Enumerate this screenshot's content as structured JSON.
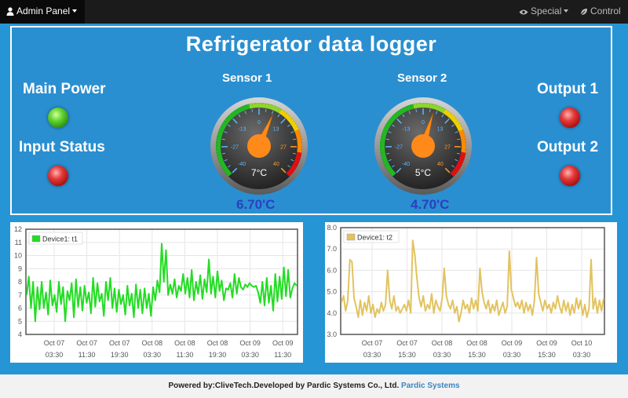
{
  "nav": {
    "brand_label": "Admin Panel",
    "special_label": "Special",
    "control_label": "Control"
  },
  "dashboard": {
    "title": "Refrigerator data logger",
    "main_power_label": "Main Power",
    "input_status_label": "Input Status",
    "output1_label": "Output 1",
    "output2_label": "Output 2",
    "main_power_state": "on",
    "input_status_state": "off",
    "output1_state": "off",
    "output2_state": "off",
    "led_colors": {
      "on": "#62d434",
      "off": "#e43a3a"
    }
  },
  "sensors": [
    {
      "title": "Sensor 1",
      "gauge_value": 7,
      "gauge_label": "7°C",
      "reading": "6.70'C",
      "ticks": [
        "-40",
        "-27",
        "-13",
        "0",
        "13",
        "27",
        "40"
      ]
    },
    {
      "title": "Sensor 2",
      "gauge_value": 5,
      "gauge_label": "5°C",
      "reading": "4.70'C",
      "ticks": [
        "-40",
        "-27",
        "-13",
        "0",
        "13",
        "27",
        "40"
      ]
    }
  ],
  "chart_data": [
    {
      "type": "line",
      "series": [
        {
          "name": "Device1: t1",
          "color": "#22dd22"
        }
      ],
      "ylim": [
        4,
        12
      ],
      "yticks": [
        "4",
        "5",
        "6",
        "7",
        "8",
        "9",
        "10",
        "11",
        "12"
      ],
      "xticks": [
        [
          "Oct 07",
          "03:30"
        ],
        [
          "Oct 07",
          "11:30"
        ],
        [
          "Oct 07",
          "19:30"
        ],
        [
          "Oct 08",
          "03:30"
        ],
        [
          "Oct 08",
          "11:30"
        ],
        [
          "Oct 08",
          "19:30"
        ],
        [
          "Oct 09",
          "03:30"
        ],
        [
          "Oct 09",
          "11:30"
        ]
      ],
      "y": [
        7,
        8.4,
        6,
        8,
        5,
        7.6,
        5.9,
        8,
        6,
        7.2,
        5.5,
        8.1,
        6.2,
        7,
        5.7,
        8,
        6.3,
        7.6,
        5,
        7.3,
        6.6,
        7.9,
        5.3,
        8.2,
        6.1,
        7.6,
        5.8,
        7.7,
        6.4,
        7.2,
        5.6,
        8.3,
        6.1,
        7.9,
        6.5,
        7.1,
        5.4,
        8,
        6.6,
        8.3,
        6,
        7.5,
        5.7,
        7.4,
        6.3,
        7,
        5.5,
        7.7,
        6.2,
        7.1,
        5.3,
        7.8,
        6,
        7.4,
        5.6,
        7.5,
        6,
        7.1,
        5.4,
        7.6,
        6.6,
        8.1,
        7.2,
        10.9,
        8,
        10.4,
        7,
        7.8,
        7.1,
        8.2,
        6.8,
        7.7,
        7.3,
        8.6,
        7.1,
        8.3,
        6.8,
        8.9,
        6.6,
        8,
        7.1,
        8.5,
        6.7,
        8.2,
        7.2,
        9.7,
        7.1,
        8.4,
        6.8,
        8.8,
        7.3,
        8.1,
        6.6,
        7.5,
        7.4,
        7.9,
        6.8,
        8.6,
        7.1,
        8.3,
        7.6,
        7.4,
        7.8,
        7.6,
        7.9,
        7.7,
        7.6,
        7.7,
        7.2,
        6.4,
        8,
        6.2,
        8.3,
        6.4,
        7.7,
        5.8,
        8.6,
        6.5,
        8.4,
        6.7,
        9.1,
        6.9,
        8.9,
        6.8,
        7.5,
        7.9,
        7.7
      ]
    },
    {
      "type": "line",
      "series": [
        {
          "name": "Device1: t2",
          "color": "#e2c35f"
        }
      ],
      "ylim": [
        3,
        8
      ],
      "yticks": [
        "3.0",
        "4.0",
        "5.0",
        "6.0",
        "7.0",
        "8.0"
      ],
      "xticks": [
        [
          "Oct 07",
          "03:30"
        ],
        [
          "Oct 07",
          "15:30"
        ],
        [
          "Oct 08",
          "03:30"
        ],
        [
          "Oct 08",
          "15:30"
        ],
        [
          "Oct 09",
          "03:30"
        ],
        [
          "Oct 09",
          "15:30"
        ],
        [
          "Oct 10",
          "03:30"
        ]
      ],
      "y": [
        4.5,
        4.8,
        4.1,
        4.6,
        6.5,
        6.4,
        4.7,
        4.3,
        3.8,
        4.6,
        3.9,
        4.5,
        4.1,
        4.8,
        4.0,
        4.4,
        3.8,
        4.2,
        4.0,
        4.5,
        4.1,
        4.4,
        6.0,
        4.6,
        4.2,
        4.8,
        4.1,
        4.3,
        4.0,
        4.2,
        4.4,
        4.1,
        4.6,
        4.0,
        7.4,
        6.7,
        5.6,
        4.7,
        4.3,
        4.8,
        4.1,
        4.4,
        4.2,
        4.9,
        4.0,
        4.6,
        4.3,
        4.1,
        4.7,
        6.1,
        4.8,
        4.4,
        4.2,
        4.6,
        4.0,
        4.3,
        3.6,
        4.0,
        4.6,
        4.2,
        4.4,
        4.0,
        4.7,
        4.2,
        4.6,
        4.1,
        6.1,
        5.0,
        4.5,
        4.2,
        4.6,
        4.0,
        4.4,
        4.1,
        4.6,
        3.9,
        4.2,
        4.5,
        4.0,
        4.3,
        6.9,
        5.1,
        4.7,
        4.3,
        4.5,
        4.2,
        4.6,
        4.0,
        4.5,
        4.1,
        4.4,
        3.9,
        4.6,
        6.6,
        4.9,
        4.5,
        4.1,
        4.6,
        4.2,
        4.4,
        4.0,
        4.5,
        4.2,
        4.8,
        4.3,
        4.0,
        4.6,
        4.1,
        4.5,
        3.9,
        4.4,
        4.0,
        4.7,
        4.2,
        4.6,
        3.9,
        4.4,
        3.8,
        4.2,
        6.5,
        4.2,
        4.7,
        4.0,
        4.6,
        4.1,
        4.7
      ]
    }
  ],
  "footer": {
    "text": "Powered by:CliveTech.Developed by Pardic Systems Co., Ltd.",
    "link": "Pardic Systems"
  }
}
